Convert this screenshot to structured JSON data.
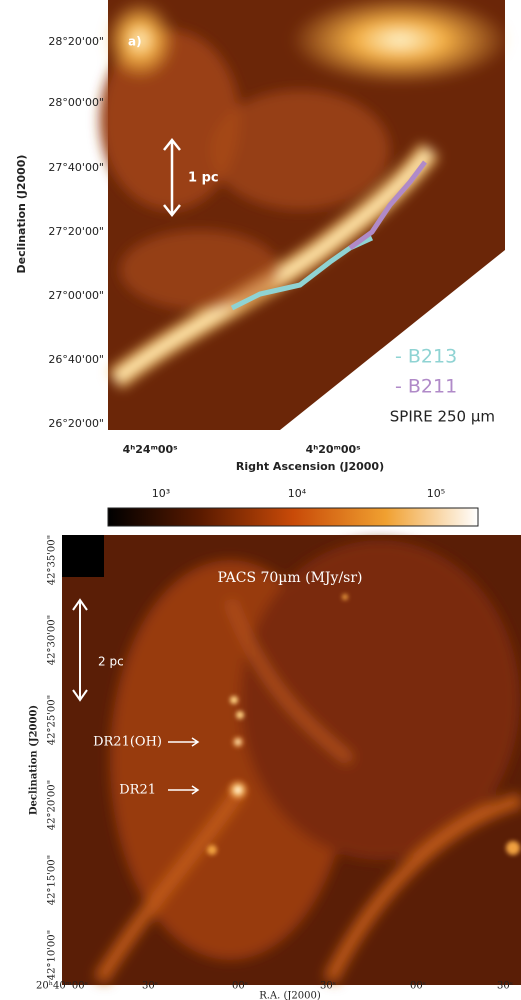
{
  "top_panel": {
    "panel_label": "a)",
    "y_axis_label": "Declination (J2000)",
    "x_axis_label": "Right Ascension (J2000)",
    "y_tick_labels": [
      "28°20'00\"",
      "28°00'00\"",
      "27°40'00\"",
      "27°20'00\"",
      "27°00'00\"",
      "26°40'00\"",
      "26°20'00\""
    ],
    "x_tick_labels": [
      "4ʰ24ᵐ00ˢ",
      "4ʰ20ᵐ00ˢ"
    ],
    "scale_bar": "1 pc",
    "legend": [
      "- B213",
      "- B211"
    ],
    "band_label": "SPIRE 250 µm"
  },
  "colorbar": {
    "tick_labels": [
      "10³",
      "10⁴",
      "10⁵"
    ]
  },
  "bottom_panel": {
    "title": "PACS 70µm (MJy/sr)",
    "y_axis_label": "Declination (J2000)",
    "x_axis_label": "R.A. (J2000)",
    "y_tick_labels": [
      "42°35'00\"",
      "42°30'00\"",
      "42°25'00\"",
      "42°20'00\"",
      "42°15'00\"",
      "42°10'00\""
    ],
    "x_tick_labels": [
      "20ʰ40ᵐ00ˢ",
      "30ˢ",
      "00ˢ",
      "30ˢ",
      "00ˢ",
      "30ˢ"
    ],
    "scale_bar": "2 pc",
    "annotations": [
      "DR21(OH)",
      "DR21"
    ]
  }
}
